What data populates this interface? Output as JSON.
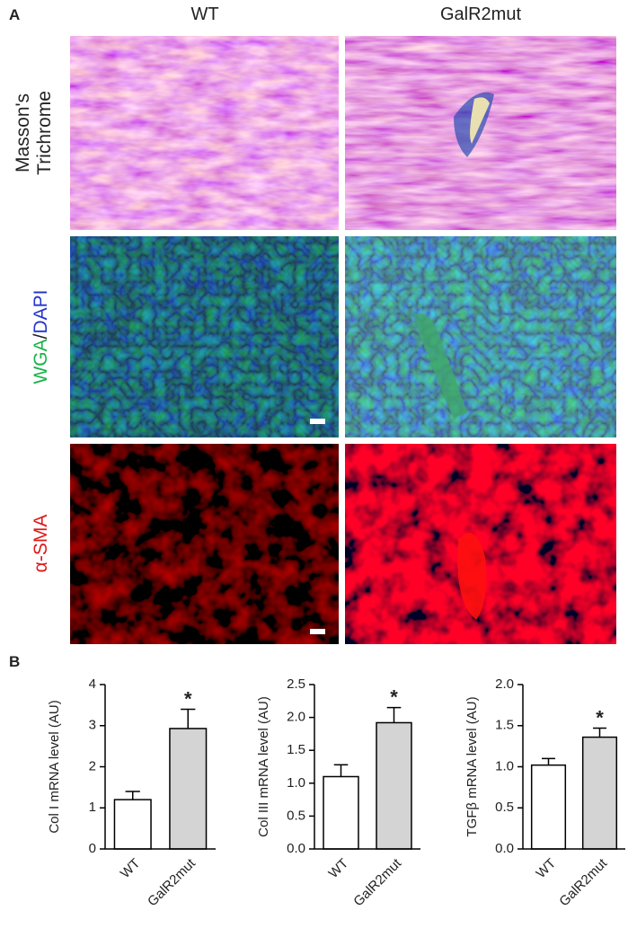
{
  "figure": {
    "panel_a": "A",
    "panel_b": "B",
    "column_headers": [
      "WT",
      "GalR2mut"
    ],
    "row_labels": [
      [
        "Masson's",
        "Trichrome"
      ],
      [
        "WGA",
        "/",
        "DAPI"
      ],
      [
        "α-SMA"
      ]
    ]
  },
  "chart_data": [
    {
      "type": "bar",
      "y_label": "Col I mRNA level (AU)",
      "categories": [
        "WT",
        "GalR2mut"
      ],
      "values": [
        1.2,
        2.93
      ],
      "errors": [
        0.2,
        0.47
      ],
      "colors": [
        "#ffffff",
        "#d4d4d4"
      ],
      "ylim": [
        0,
        4
      ],
      "yticks": [
        0,
        1,
        2,
        3,
        4
      ],
      "annotation": {
        "text": "*",
        "category": 1
      }
    },
    {
      "type": "bar",
      "y_label": "Col III mRNA level (AU)",
      "categories": [
        "WT",
        "GalR2mut"
      ],
      "values": [
        1.1,
        1.92
      ],
      "errors": [
        0.18,
        0.23
      ],
      "colors": [
        "#ffffff",
        "#d4d4d4"
      ],
      "ylim": [
        0,
        2.5
      ],
      "yticks": [
        {
          "value": 0,
          "label": "0.0"
        },
        0.5,
        {
          "value": 1,
          "label": "1.0"
        },
        1.5,
        {
          "value": 2,
          "label": "2.0"
        },
        2.5
      ],
      "annotation": {
        "text": "*",
        "category": 1
      }
    },
    {
      "type": "bar",
      "y_label": "TGFβ mRNA level (AU)",
      "categories": [
        "WT",
        "GalR2mut"
      ],
      "values": [
        1.02,
        1.36
      ],
      "errors": [
        0.08,
        0.11
      ],
      "colors": [
        "#ffffff",
        "#d4d4d4"
      ],
      "ylim": [
        0,
        2
      ],
      "yticks": [
        {
          "value": 0,
          "label": "0.0"
        },
        0.5,
        {
          "value": 1,
          "label": "1.0"
        },
        1.5,
        {
          "value": 2,
          "label": "2.0"
        }
      ],
      "annotation": {
        "text": "*",
        "category": 1
      }
    }
  ]
}
